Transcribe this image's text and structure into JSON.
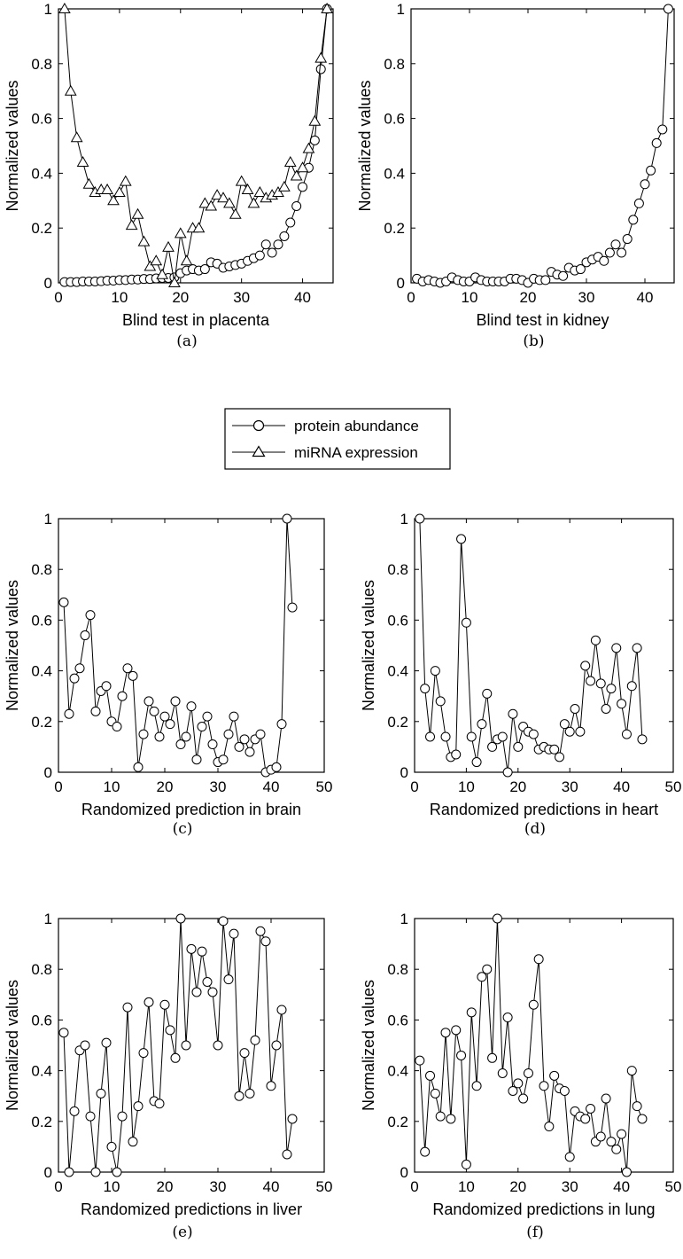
{
  "legend": [
    {
      "label": "protein abundance",
      "marker": "circle"
    },
    {
      "label": "miRNA expression",
      "marker": "triangle"
    }
  ],
  "chart_data": [
    {
      "type": "line",
      "caption": "(a)",
      "xlabel": "Blind test in placenta",
      "ylabel": "Normalized values",
      "xlim": [
        0,
        45
      ],
      "ylim": [
        0,
        1
      ],
      "xticks": [
        0,
        10,
        20,
        30,
        40
      ],
      "yticks": [
        0,
        0.2,
        0.4,
        0.6,
        0.8,
        1
      ],
      "series": [
        {
          "name": "protein abundance",
          "marker": "circle",
          "x": [
            1,
            2,
            3,
            4,
            5,
            6,
            7,
            8,
            9,
            10,
            11,
            12,
            13,
            14,
            15,
            16,
            17,
            18,
            19,
            20,
            21,
            22,
            23,
            24,
            25,
            26,
            27,
            28,
            29,
            30,
            31,
            32,
            33,
            34,
            35,
            36,
            37,
            38,
            39,
            40,
            41,
            42,
            43,
            44
          ],
          "values": [
            0.003,
            0.003,
            0.003,
            0.005,
            0.005,
            0.005,
            0.006,
            0.008,
            0.008,
            0.01,
            0.01,
            0.012,
            0.012,
            0.014,
            0.014,
            0.016,
            0.018,
            0.018,
            0.02,
            0.035,
            0.045,
            0.05,
            0.045,
            0.05,
            0.075,
            0.07,
            0.055,
            0.06,
            0.065,
            0.07,
            0.08,
            0.09,
            0.1,
            0.14,
            0.11,
            0.14,
            0.17,
            0.22,
            0.28,
            0.35,
            0.42,
            0.52,
            0.78,
            1.0
          ]
        },
        {
          "name": "miRNA expression",
          "marker": "triangle",
          "x": [
            1,
            2,
            3,
            4,
            5,
            6,
            7,
            8,
            9,
            10,
            11,
            12,
            13,
            14,
            15,
            16,
            17,
            18,
            19,
            20,
            21,
            22,
            23,
            24,
            25,
            26,
            27,
            28,
            29,
            30,
            31,
            32,
            33,
            34,
            35,
            36,
            37,
            38,
            39,
            40,
            41,
            42,
            43,
            44
          ],
          "values": [
            1.0,
            0.7,
            0.53,
            0.44,
            0.36,
            0.33,
            0.34,
            0.34,
            0.3,
            0.33,
            0.37,
            0.21,
            0.25,
            0.15,
            0.06,
            0.08,
            0.03,
            0.13,
            0.0,
            0.18,
            0.08,
            0.2,
            0.2,
            0.29,
            0.28,
            0.32,
            0.31,
            0.29,
            0.25,
            0.37,
            0.34,
            0.29,
            0.33,
            0.31,
            0.32,
            0.33,
            0.35,
            0.44,
            0.39,
            0.42,
            0.49,
            0.59,
            0.82,
            1.0
          ]
        }
      ]
    },
    {
      "type": "line",
      "caption": "(b)",
      "xlabel": "Blind test in kidney",
      "ylabel": "Normalized values",
      "xlim": [
        0,
        45
      ],
      "ylim": [
        0,
        1
      ],
      "xticks": [
        0,
        10,
        20,
        30,
        40
      ],
      "yticks": [
        0,
        0.2,
        0.4,
        0.6,
        0.8,
        1
      ],
      "series": [
        {
          "name": "protein abundance",
          "marker": "circle",
          "x": [
            1,
            2,
            3,
            4,
            5,
            6,
            7,
            8,
            9,
            10,
            11,
            12,
            13,
            14,
            15,
            16,
            17,
            18,
            19,
            20,
            21,
            22,
            23,
            24,
            25,
            26,
            27,
            28,
            29,
            30,
            31,
            32,
            33,
            34,
            35,
            36,
            37,
            38,
            39,
            40,
            41,
            42,
            43,
            44
          ],
          "values": [
            0.015,
            0.005,
            0.01,
            0.005,
            0.0,
            0.005,
            0.02,
            0.01,
            0.005,
            0.005,
            0.02,
            0.01,
            0.005,
            0.005,
            0.005,
            0.005,
            0.015,
            0.015,
            0.01,
            0.0,
            0.015,
            0.01,
            0.01,
            0.04,
            0.03,
            0.025,
            0.055,
            0.045,
            0.05,
            0.075,
            0.085,
            0.095,
            0.08,
            0.11,
            0.14,
            0.11,
            0.16,
            0.23,
            0.29,
            0.36,
            0.41,
            0.51,
            0.56,
            1.0
          ]
        }
      ]
    },
    {
      "type": "line",
      "caption": "(c)",
      "xlabel": "Randomized prediction in brain",
      "ylabel": "Normalized values",
      "xlim": [
        0,
        50
      ],
      "ylim": [
        0,
        1
      ],
      "xticks": [
        0,
        10,
        20,
        30,
        40,
        50
      ],
      "yticks": [
        0,
        0.2,
        0.4,
        0.6,
        0.8,
        1
      ],
      "series": [
        {
          "name": "protein abundance",
          "marker": "circle",
          "x": [
            1,
            2,
            3,
            4,
            5,
            6,
            7,
            8,
            9,
            10,
            11,
            12,
            13,
            14,
            15,
            16,
            17,
            18,
            19,
            20,
            21,
            22,
            23,
            24,
            25,
            26,
            27,
            28,
            29,
            30,
            31,
            32,
            33,
            34,
            35,
            36,
            37,
            38,
            39,
            40,
            41,
            42,
            43,
            44
          ],
          "values": [
            0.67,
            0.23,
            0.37,
            0.41,
            0.54,
            0.62,
            0.24,
            0.32,
            0.34,
            0.2,
            0.18,
            0.3,
            0.41,
            0.38,
            0.02,
            0.15,
            0.28,
            0.24,
            0.14,
            0.22,
            0.19,
            0.28,
            0.11,
            0.14,
            0.26,
            0.05,
            0.18,
            0.22,
            0.11,
            0.04,
            0.05,
            0.15,
            0.22,
            0.1,
            0.13,
            0.08,
            0.13,
            0.15,
            0.0,
            0.01,
            0.02,
            0.19,
            1.0,
            0.65
          ]
        }
      ]
    },
    {
      "type": "line",
      "caption": "(d)",
      "xlabel": "Randomized predictions in heart",
      "ylabel": "Normalized values",
      "xlim": [
        0,
        50
      ],
      "ylim": [
        0,
        1
      ],
      "xticks": [
        0,
        10,
        20,
        30,
        40,
        50
      ],
      "yticks": [
        0,
        0.2,
        0.4,
        0.6,
        0.8,
        1
      ],
      "series": [
        {
          "name": "protein abundance",
          "marker": "circle",
          "x": [
            1,
            2,
            3,
            4,
            5,
            6,
            7,
            8,
            9,
            10,
            11,
            12,
            13,
            14,
            15,
            16,
            17,
            18,
            19,
            20,
            21,
            22,
            23,
            24,
            25,
            26,
            27,
            28,
            29,
            30,
            31,
            32,
            33,
            34,
            35,
            36,
            37,
            38,
            39,
            40,
            41,
            42,
            43,
            44
          ],
          "values": [
            1.0,
            0.33,
            0.14,
            0.4,
            0.28,
            0.14,
            0.06,
            0.07,
            0.92,
            0.59,
            0.14,
            0.04,
            0.19,
            0.31,
            0.1,
            0.13,
            0.14,
            0.0,
            0.23,
            0.1,
            0.18,
            0.16,
            0.15,
            0.09,
            0.1,
            0.09,
            0.09,
            0.06,
            0.19,
            0.16,
            0.25,
            0.16,
            0.42,
            0.36,
            0.52,
            0.35,
            0.25,
            0.33,
            0.49,
            0.27,
            0.15,
            0.34,
            0.49,
            0.13
          ]
        }
      ]
    },
    {
      "type": "line",
      "caption": "(e)",
      "xlabel": "Randomized predictions in liver",
      "ylabel": "Normalized values",
      "xlim": [
        0,
        50
      ],
      "ylim": [
        0,
        1
      ],
      "xticks": [
        0,
        10,
        20,
        30,
        40,
        50
      ],
      "yticks": [
        0,
        0.2,
        0.4,
        0.6,
        0.8,
        1
      ],
      "series": [
        {
          "name": "protein abundance",
          "marker": "circle",
          "x": [
            1,
            2,
            3,
            4,
            5,
            6,
            7,
            8,
            9,
            10,
            11,
            12,
            13,
            14,
            15,
            16,
            17,
            18,
            19,
            20,
            21,
            22,
            23,
            24,
            25,
            26,
            27,
            28,
            29,
            30,
            31,
            32,
            33,
            34,
            35,
            36,
            37,
            38,
            39,
            40,
            41,
            42,
            43,
            44
          ],
          "values": [
            0.55,
            0.0,
            0.24,
            0.48,
            0.5,
            0.22,
            0.0,
            0.31,
            0.51,
            0.1,
            0.0,
            0.22,
            0.65,
            0.12,
            0.26,
            0.47,
            0.67,
            0.28,
            0.27,
            0.66,
            0.56,
            0.45,
            1.0,
            0.5,
            0.88,
            0.71,
            0.87,
            0.75,
            0.71,
            0.5,
            0.99,
            0.76,
            0.94,
            0.3,
            0.47,
            0.31,
            0.52,
            0.95,
            0.91,
            0.34,
            0.5,
            0.64,
            0.07,
            0.21
          ]
        }
      ]
    },
    {
      "type": "line",
      "caption": "(f)",
      "xlabel": "Randomized predictions in lung",
      "ylabel": "Normalized values",
      "xlim": [
        0,
        50
      ],
      "ylim": [
        0,
        1
      ],
      "xticks": [
        0,
        10,
        20,
        30,
        40,
        50
      ],
      "yticks": [
        0,
        0.2,
        0.4,
        0.6,
        0.8,
        1
      ],
      "series": [
        {
          "name": "protein abundance",
          "marker": "circle",
          "x": [
            1,
            2,
            3,
            4,
            5,
            6,
            7,
            8,
            9,
            10,
            11,
            12,
            13,
            14,
            15,
            16,
            17,
            18,
            19,
            20,
            21,
            22,
            23,
            24,
            25,
            26,
            27,
            28,
            29,
            30,
            31,
            32,
            33,
            34,
            35,
            36,
            37,
            38,
            39,
            40,
            41,
            42,
            43,
            44
          ],
          "values": [
            0.44,
            0.08,
            0.38,
            0.31,
            0.22,
            0.55,
            0.21,
            0.56,
            0.46,
            0.03,
            0.63,
            0.34,
            0.77,
            0.8,
            0.45,
            1.0,
            0.39,
            0.61,
            0.32,
            0.35,
            0.29,
            0.39,
            0.66,
            0.84,
            0.34,
            0.18,
            0.38,
            0.33,
            0.32,
            0.06,
            0.24,
            0.22,
            0.21,
            0.25,
            0.12,
            0.14,
            0.29,
            0.12,
            0.09,
            0.15,
            0.0,
            0.4,
            0.26,
            0.21
          ]
        }
      ]
    }
  ]
}
